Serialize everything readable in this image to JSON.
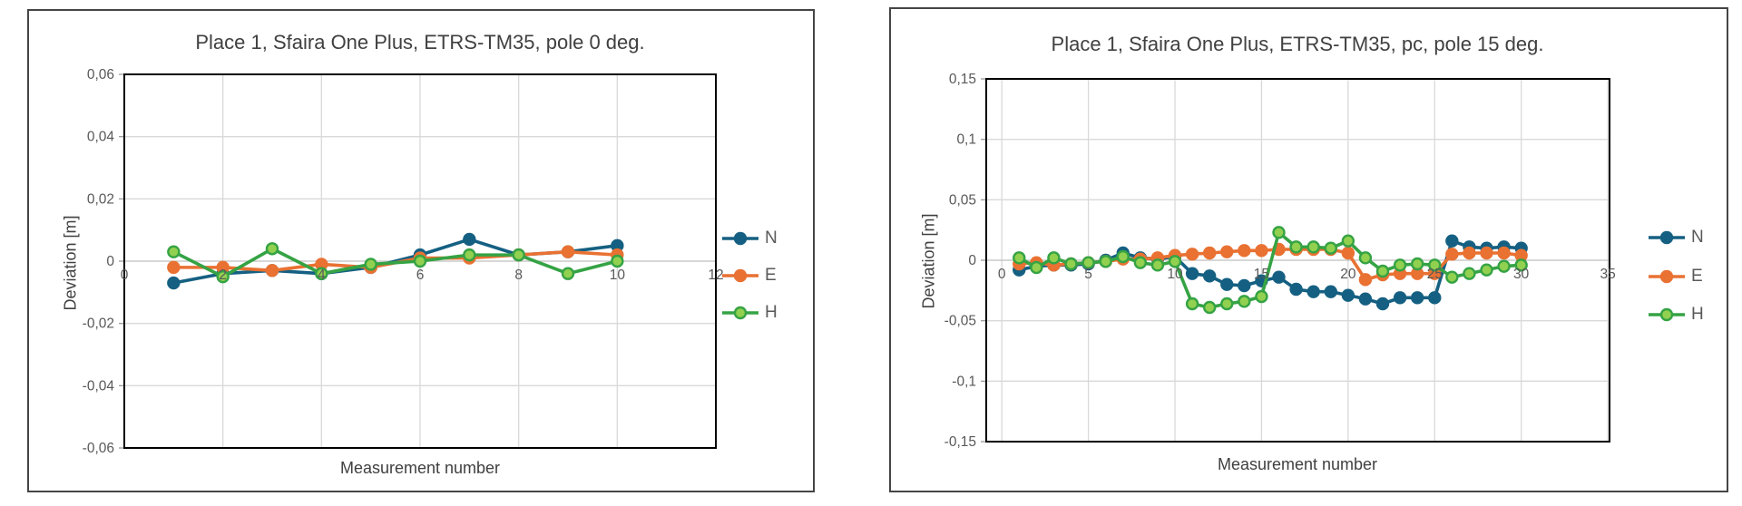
{
  "page": {
    "background_color": "#ffffff",
    "text_color_title": "#404040",
    "text_color_ticks": "#595959",
    "gridline_color": "#d9d9d9",
    "zero_line_color": "#bfbfbf",
    "plot_border_color": "#000000",
    "card_border_color": "#454545"
  },
  "chart_data": [
    {
      "type": "line",
      "title": "Place 1, Sfaira One Plus, ETRS-TM35, pole 0 deg.",
      "xlabel": "Measurement number",
      "ylabel": "Deviation [m]",
      "grid": true,
      "legend_position": "right",
      "xlim": [
        0,
        12
      ],
      "ylim": [
        -0.06,
        0.06
      ],
      "xticks": [
        0,
        2,
        4,
        6,
        8,
        10,
        12
      ],
      "xticklabels": [
        "0",
        "2",
        "4",
        "6",
        "8",
        "10",
        "12"
      ],
      "yticks": [
        0.06,
        0.04,
        0.02,
        0,
        -0.02,
        -0.04,
        -0.06
      ],
      "yticklabels": [
        "0,06",
        "0,04",
        "0,02",
        "0",
        "-0,02",
        "-0,04",
        "-0,06"
      ],
      "x": [
        1,
        2,
        3,
        4,
        5,
        6,
        7,
        8,
        9,
        10
      ],
      "series": [
        {
          "name": "N",
          "color": "#156082",
          "marker_fill": "#156082",
          "marker_stroke": "#156082",
          "values": [
            -0.007,
            -0.004,
            -0.003,
            -0.004,
            -0.002,
            0.002,
            0.007,
            0.002,
            0.003,
            0.005
          ]
        },
        {
          "name": "E",
          "color": "#E97132",
          "marker_fill": "#E97132",
          "marker_stroke": "#E97132",
          "values": [
            -0.002,
            -0.002,
            -0.003,
            -0.001,
            -0.002,
            0.001,
            0.001,
            0.002,
            0.003,
            0.002
          ]
        },
        {
          "name": "H",
          "color": "#35A344",
          "marker_fill": "#92D050",
          "marker_stroke": "#35A344",
          "values": [
            0.003,
            -0.005,
            0.004,
            -0.004,
            -0.001,
            0.0,
            0.002,
            0.002,
            -0.004,
            0.0
          ]
        }
      ]
    },
    {
      "type": "line",
      "title": "Place 1, Sfaira One Plus, ETRS-TM35, pc, pole 15 deg.",
      "xlabel": "Measurement number",
      "ylabel": "Deviation [m]",
      "grid": true,
      "legend_position": "right",
      "xlim": [
        -0.9,
        35.1
      ],
      "ylim": [
        -0.15,
        0.15
      ],
      "xticks": [
        0,
        5,
        10,
        15,
        20,
        25,
        30,
        35
      ],
      "xticklabels": [
        "0",
        "5",
        "10",
        "15",
        "20",
        "25",
        "30",
        "35"
      ],
      "yticks": [
        0.15,
        0.1,
        0.05,
        0,
        -0.05,
        -0.1,
        -0.15
      ],
      "yticklabels": [
        "0,15",
        "0,1",
        "0,05",
        "0",
        "-0,05",
        "-0,1",
        "-0,15"
      ],
      "x": [
        1,
        2,
        3,
        4,
        5,
        6,
        7,
        8,
        9,
        10,
        11,
        12,
        13,
        14,
        15,
        16,
        17,
        18,
        19,
        20,
        21,
        22,
        23,
        24,
        25,
        26,
        27,
        28,
        29,
        30
      ],
      "series": [
        {
          "name": "N",
          "color": "#156082",
          "marker_fill": "#156082",
          "marker_stroke": "#156082",
          "values": [
            -0.008,
            -0.005,
            -0.004,
            -0.004,
            -0.003,
            0.0,
            0.006,
            0.002,
            0.001,
            0.003,
            -0.011,
            -0.013,
            -0.02,
            -0.021,
            -0.017,
            -0.014,
            -0.024,
            -0.026,
            -0.026,
            -0.029,
            -0.032,
            -0.036,
            -0.031,
            -0.031,
            -0.031,
            0.016,
            0.011,
            0.01,
            0.011,
            0.01
          ]
        },
        {
          "name": "E",
          "color": "#E97132",
          "marker_fill": "#E97132",
          "marker_stroke": "#E97132",
          "values": [
            -0.003,
            -0.002,
            -0.004,
            -0.003,
            -0.002,
            -0.001,
            0.001,
            0.001,
            0.002,
            0.004,
            0.005,
            0.006,
            0.007,
            0.008,
            0.008,
            0.009,
            0.009,
            0.009,
            0.009,
            0.006,
            -0.016,
            -0.012,
            -0.011,
            -0.011,
            -0.011,
            0.005,
            0.006,
            0.006,
            0.006,
            0.004
          ]
        },
        {
          "name": "H",
          "color": "#35A344",
          "marker_fill": "#92D050",
          "marker_stroke": "#35A344",
          "values": [
            0.002,
            -0.006,
            0.002,
            -0.003,
            -0.002,
            -0.001,
            0.003,
            -0.002,
            -0.004,
            -0.001,
            -0.036,
            -0.039,
            -0.036,
            -0.034,
            -0.03,
            0.023,
            0.011,
            0.011,
            0.01,
            0.016,
            0.002,
            -0.009,
            -0.004,
            -0.003,
            -0.004,
            -0.014,
            -0.011,
            -0.008,
            -0.005,
            -0.004
          ]
        }
      ]
    }
  ]
}
